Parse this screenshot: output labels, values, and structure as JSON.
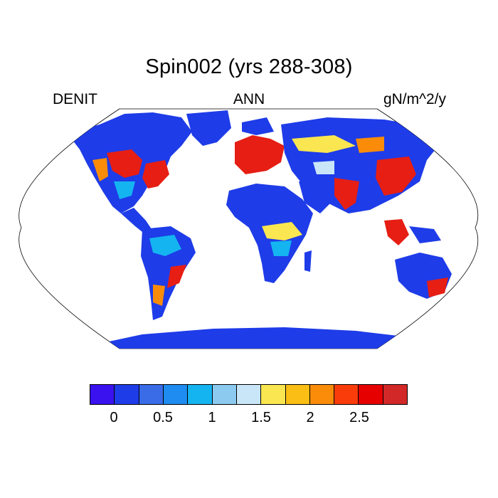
{
  "header": {
    "title": "Spin002 (yrs 288-308)",
    "left_label": "DENIT",
    "center_label": "ANN",
    "right_label": "gN/m^2/y"
  },
  "colorbar": {
    "colors": [
      "#3a12f0",
      "#1e3ce8",
      "#3a6ce8",
      "#1e8cf0",
      "#14b4f0",
      "#8ccaf0",
      "#c8e6f8",
      "#fae650",
      "#fabe14",
      "#fa8c0a",
      "#fa3c0a",
      "#e60000",
      "#d22828"
    ],
    "tick_labels": [
      "0",
      "0.5",
      "1",
      "1.5",
      "2",
      "2.5"
    ]
  },
  "map": {
    "projection": "robinson-like",
    "background_color": "#1e3ce8",
    "land_colors": {
      "low": "#1e3ce8",
      "mid": "#14b4f0",
      "pale": "#c8e6f8",
      "yellow": "#fae650",
      "orange": "#fa8c0a",
      "red": "#e61e14"
    }
  }
}
